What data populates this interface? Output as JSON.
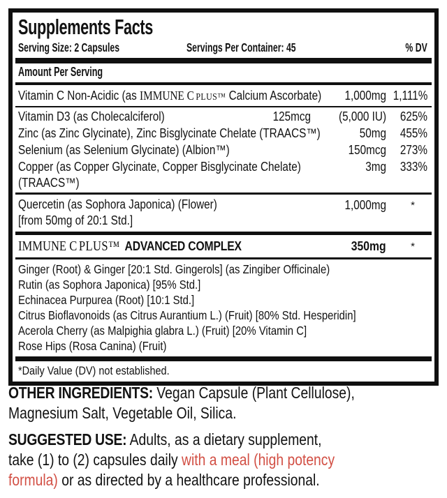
{
  "panel": {
    "title": "Supplements Facts",
    "serving_size": "Serving Size: 2 Capsules",
    "servings_per_container": "Servings Per Container: 45",
    "dv_header": "% DV",
    "amount_per_serving": "Amount Per Serving",
    "brand": {
      "main": "IMMUNE C",
      "small": "PLUS™"
    },
    "rows": {
      "vitamin_c": {
        "pre": "Vitamin C Non-Acidic (as ",
        "post": " Calcium Ascorbate)",
        "amount": "1,000mg",
        "dv": "1,111%"
      },
      "vitamin_d3": {
        "name": "Vitamin D3 (as Cholecalciferol)",
        "amount_metric": "125mcg",
        "amount_iu": "(5,000 IU)",
        "dv": "625%"
      },
      "zinc": {
        "name": "Zinc (as Zinc Glycinate), Zinc Bisglycinate Chelate (TRAACS™)",
        "amount": "50mg",
        "dv": "455%"
      },
      "selenium": {
        "name": "Selenium (as Selenium Glycinate) (Albion™)",
        "amount": "150mcg",
        "dv": "273%"
      },
      "copper": {
        "name": "Copper (as Copper Glycinate, Copper Bisglycinate Chelate)",
        "name_line2": "(TRAACS™)",
        "amount": "3mg",
        "dv": "333%"
      },
      "quercetin": {
        "name": "Quercetin (as Sophora Japonica) (Flower)",
        "name_line2": "[from 50mg of 20:1 Std.]",
        "amount": "1,000mg",
        "dv": "*"
      }
    },
    "complex": {
      "brand_main": "IMMUNE C",
      "brand_small": "PLUS™",
      "title": "ADVANCED COMPLEX",
      "amount": "350mg",
      "dv": "*",
      "items": [
        "Ginger (Root) & Ginger [20:1 Std. Gingerols] (as Zingiber Officinale)",
        "Rutin (as Sophora Japonica) [95% Std.]",
        "Echinacea Purpurea (Root) [10:1 Std.]",
        "Citrus Bioflavonoids (as Citrus Aurantium L.) (Fruit) [80% Std. Hesperidin]",
        "Acerola Cherry (as Malpighia glabra L.) (Fruit) [20% Vitamin C]",
        "Rose Hips (Rosa Canina) (Fruit)"
      ]
    },
    "footnote": "*Daily Value (DV) not established."
  },
  "other_ingredients": {
    "label": "OTHER INGREDIENTS:",
    "line1_rest": " Vegan Capsule (Plant Cellulose),",
    "line2": "Magnesium Salt, Vegetable Oil, Silica."
  },
  "suggested_use": {
    "label": "SUGGESTED USE:",
    "line1_rest": " Adults, as a dietary supplement,",
    "line2_black": "take (1) to (2) capsules daily ",
    "line2_red": "with a meal (high potency",
    "line3_red": "formula)",
    "line3_black": " or as directed by a healthcare professional."
  },
  "colors": {
    "text": "#121212",
    "accent_red": "#d24f44",
    "border": "#101010"
  }
}
